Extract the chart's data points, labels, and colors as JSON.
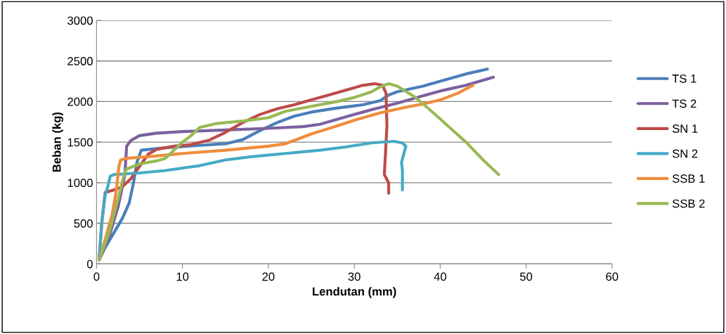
{
  "chart_data": {
    "type": "line",
    "xlabel": "Lendutan (mm)",
    "ylabel": "Beban (kg)",
    "xlim": [
      0,
      60
    ],
    "xticks": [
      0,
      10,
      20,
      30,
      40,
      50,
      60
    ],
    "ylim": [
      0,
      3000
    ],
    "yticks": [
      0,
      500,
      1000,
      1500,
      2000,
      2500,
      3000
    ],
    "grid": "y",
    "legend": "right",
    "marker": "none",
    "line_style": "solid",
    "series": [
      {
        "name": "TS 1",
        "color": "#4a7ebb",
        "x": [
          0.3,
          1,
          2,
          3,
          3.8,
          4.3,
          4.7,
          5.2,
          8,
          12,
          15,
          17,
          19,
          21,
          23,
          25,
          28,
          31,
          33,
          34,
          35,
          38,
          40,
          43,
          45.5
        ],
        "values": [
          50,
          200,
          380,
          560,
          750,
          1000,
          1250,
          1400,
          1430,
          1460,
          1480,
          1530,
          1640,
          1740,
          1820,
          1870,
          1920,
          1960,
          2010,
          2080,
          2120,
          2190,
          2250,
          2340,
          2400
        ]
      },
      {
        "name": "TS 2",
        "color": "#7d60a0",
        "x": [
          0.3,
          1.5,
          2.5,
          3.3,
          3.5,
          4,
          5,
          7,
          10,
          15,
          20,
          24,
          26,
          28,
          30,
          32,
          35,
          38,
          40,
          43,
          46.2
        ],
        "values": [
          50,
          350,
          700,
          1100,
          1450,
          1520,
          1580,
          1610,
          1630,
          1650,
          1670,
          1690,
          1720,
          1780,
          1840,
          1900,
          1980,
          2070,
          2130,
          2200,
          2300
        ]
      },
      {
        "name": "SN 1",
        "color": "#be4b48",
        "x": [
          0.3,
          0.6,
          1,
          2,
          3,
          4,
          5,
          6,
          7,
          9,
          11,
          13,
          15,
          17,
          19,
          21,
          23,
          25,
          27,
          29,
          31,
          32.4,
          33.3,
          33.7,
          33.8,
          33.6,
          33.5,
          34,
          34
        ],
        "values": [
          50,
          500,
          880,
          910,
          950,
          1050,
          1200,
          1350,
          1410,
          1450,
          1470,
          1520,
          1620,
          1740,
          1840,
          1910,
          1960,
          2020,
          2080,
          2140,
          2200,
          2220,
          2200,
          2100,
          1700,
          1300,
          1100,
          1000,
          870
        ]
      },
      {
        "name": "SN 2",
        "color": "#46aac5",
        "x": [
          0.3,
          0.6,
          1,
          1.3,
          1.6,
          2,
          5,
          8,
          10,
          12,
          15,
          18,
          22,
          26,
          29,
          32,
          34.6,
          35.6,
          36,
          35.5,
          35.6,
          35.6
        ],
        "values": [
          50,
          500,
          850,
          950,
          1080,
          1100,
          1120,
          1150,
          1180,
          1210,
          1280,
          1320,
          1360,
          1400,
          1440,
          1490,
          1510,
          1490,
          1450,
          1250,
          1150,
          910
        ]
      },
      {
        "name": "SSB 1",
        "color": "#f08c3c",
        "x": [
          0.3,
          1,
          1.8,
          2.3,
          2.6,
          2.8,
          3.5,
          6,
          10,
          15,
          20,
          22,
          23,
          25,
          28,
          30,
          33,
          36,
          38,
          40,
          42,
          43.8
        ],
        "values": [
          50,
          300,
          600,
          900,
          1200,
          1280,
          1300,
          1320,
          1360,
          1400,
          1450,
          1480,
          1520,
          1600,
          1700,
          1770,
          1860,
          1930,
          1970,
          2020,
          2100,
          2200
        ]
      },
      {
        "name": "SSB 2",
        "color": "#98b954",
        "x": [
          0.3,
          1.5,
          2.5,
          3.2,
          3.5,
          5,
          7,
          8,
          9,
          10,
          11,
          12,
          14,
          17,
          20,
          22,
          25,
          28,
          30,
          32,
          33,
          34,
          35,
          37,
          39,
          41,
          43,
          45,
          46.8
        ],
        "values": [
          50,
          400,
          800,
          1100,
          1170,
          1230,
          1270,
          1300,
          1400,
          1500,
          1580,
          1680,
          1730,
          1760,
          1800,
          1880,
          1940,
          2000,
          2050,
          2120,
          2180,
          2220,
          2190,
          2060,
          1880,
          1690,
          1500,
          1280,
          1100
        ]
      }
    ]
  }
}
